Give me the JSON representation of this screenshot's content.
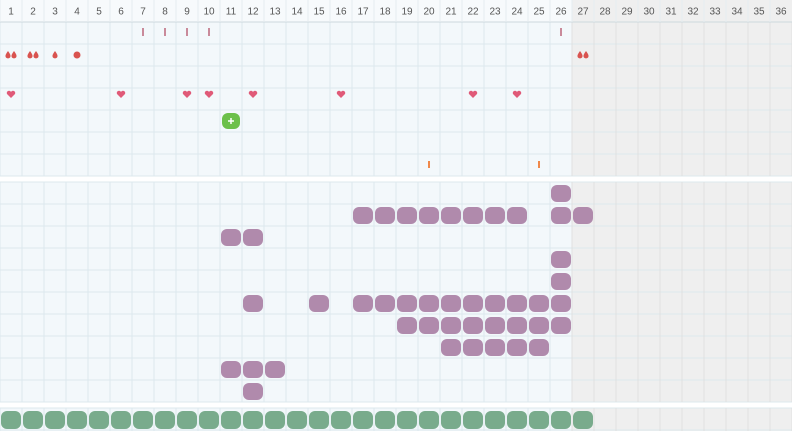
{
  "header": {
    "days": [
      1,
      2,
      3,
      4,
      5,
      6,
      7,
      8,
      9,
      10,
      11,
      12,
      13,
      14,
      15,
      16,
      17,
      18,
      19,
      20,
      21,
      22,
      23,
      24,
      25,
      26,
      27,
      28,
      29,
      30,
      31,
      32,
      33,
      34,
      35,
      36
    ]
  }
}
